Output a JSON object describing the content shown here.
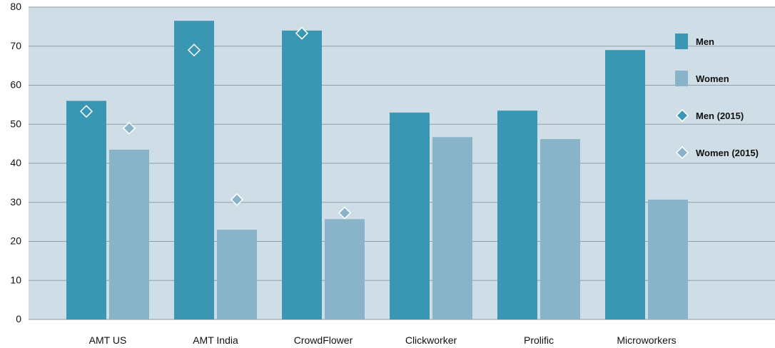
{
  "chart_data": {
    "type": "bar",
    "categories": [
      "AMT US",
      "AMT India",
      "CrowdFlower",
      "Clickworker",
      "Prolific",
      "Microworkers"
    ],
    "series": [
      {
        "name": "Men",
        "kind": "bar",
        "color": "#3a97b4",
        "values": [
          56,
          76.5,
          74,
          53,
          53.5,
          69
        ]
      },
      {
        "name": "Women",
        "kind": "bar",
        "color": "#88b3c8",
        "values": [
          43.5,
          23,
          25.7,
          46.7,
          46.2,
          30.7
        ]
      },
      {
        "name": "Men (2015)",
        "kind": "marker",
        "color": "#3a97b4",
        "values": [
          53.3,
          69,
          73.3,
          null,
          null,
          null
        ]
      },
      {
        "name": "Women (2015)",
        "kind": "marker",
        "color": "#88b3c8",
        "values": [
          49,
          30.7,
          27.3,
          null,
          null,
          null
        ]
      }
    ],
    "yticks": [
      "0",
      "10",
      "20",
      "30",
      "40",
      "50",
      "60",
      "70",
      "80"
    ],
    "ylim": [
      0,
      80
    ],
    "grid": true,
    "legend_position": "top-right",
    "plot_background": "#cfdee6",
    "gridline_color": "#8f9ea6",
    "title": "",
    "xlabel": "",
    "ylabel": ""
  }
}
